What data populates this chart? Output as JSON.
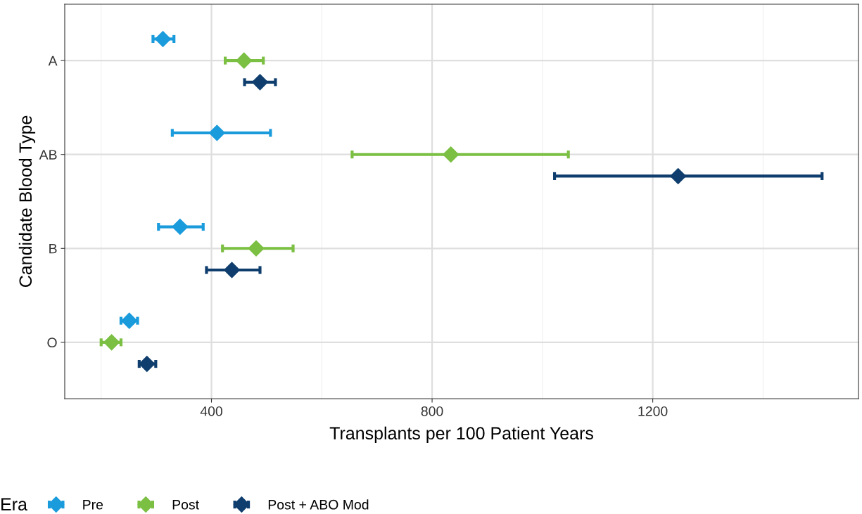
{
  "chart_data": {
    "type": "scatter",
    "orientation": "horizontal",
    "xlabel": "Transplants per 100 Patient Years",
    "ylabel": "Candidate Blood Type",
    "legend_title": "Era",
    "categories": [
      "A",
      "AB",
      "B",
      "O"
    ],
    "series": [
      {
        "name": "Pre",
        "color": "#1a9bdc",
        "values": [
          312,
          410,
          343,
          251
        ],
        "errors": [
          [
            294,
            332
          ],
          [
            329,
            507
          ],
          [
            304,
            385
          ],
          [
            236,
            266
          ]
        ]
      },
      {
        "name": "Post",
        "color": "#7bbf43",
        "values": [
          459,
          834,
          481,
          219
        ],
        "errors": [
          [
            425,
            494
          ],
          [
            655,
            1047
          ],
          [
            420,
            548
          ],
          [
            200,
            236
          ]
        ]
      },
      {
        "name": "Post + ABO Mod",
        "color": "#0f3e6e",
        "values": [
          488,
          1246,
          437,
          283
        ],
        "errors": [
          [
            460,
            516
          ],
          [
            1022,
            1507
          ],
          [
            391,
            488
          ],
          [
            269,
            299
          ]
        ]
      }
    ],
    "xlim": [
      134,
      1573
    ],
    "xticks": [
      {
        "value": 200,
        "label": null
      },
      400,
      {
        "value": 600,
        "label": null
      },
      800,
      {
        "value": 1000,
        "label": null
      },
      1200,
      {
        "value": 1400,
        "label": null
      }
    ],
    "grid": true,
    "legend": "bottom",
    "marker": "diamond"
  }
}
